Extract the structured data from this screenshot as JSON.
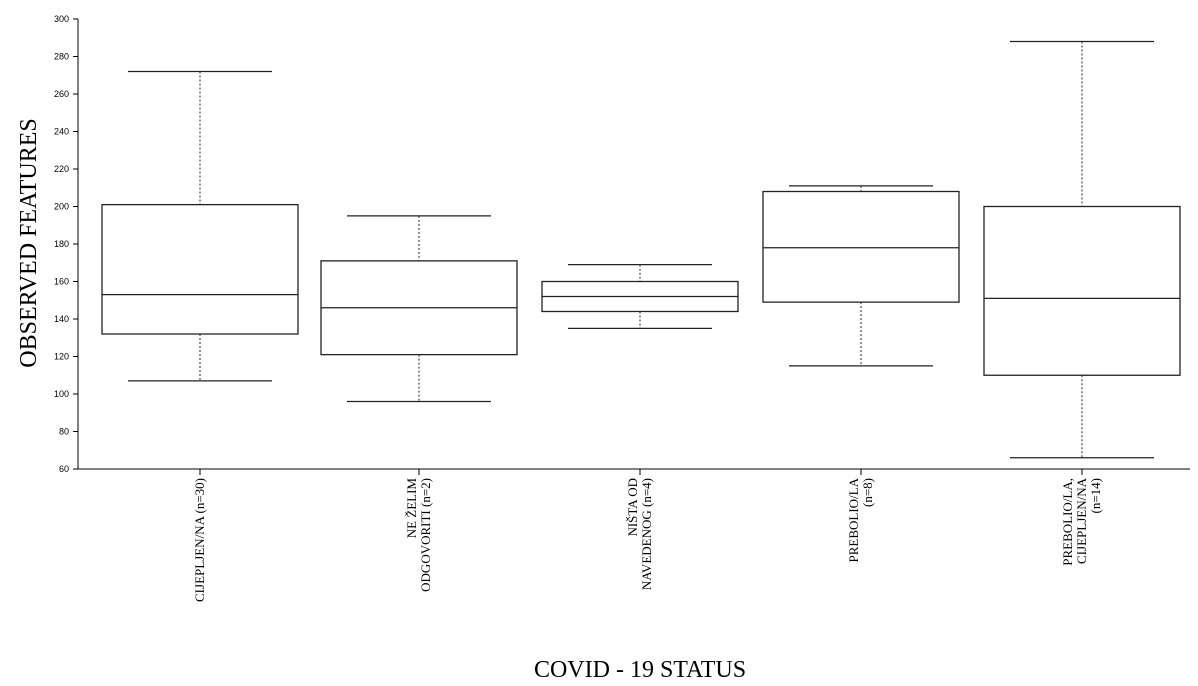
{
  "chart_data": {
    "type": "box",
    "xlabel": "COVID - 19 STATUS",
    "ylabel": "OBSERVED FEATURES",
    "ylim": [
      60,
      300
    ],
    "yticks": [
      60,
      80,
      100,
      120,
      140,
      160,
      180,
      200,
      220,
      240,
      260,
      280,
      300
    ],
    "grid": false,
    "categories": [
      [
        "CIJEPLJEN/NA (n=30)"
      ],
      [
        "NE ŽELIM",
        "ODGOVORITI (n=2)"
      ],
      [
        "NIŠTA OD",
        "NAVEDENOG (n=4)"
      ],
      [
        "PREBOLIO/LA",
        "(n=8)"
      ],
      [
        "PREBOLIO/LA,",
        "CIJEPLJEN/NA",
        "(n=14)"
      ]
    ],
    "boxes": [
      {
        "whisker_low": 107,
        "q1": 132,
        "median": 153,
        "q3": 201,
        "whisker_high": 272
      },
      {
        "whisker_low": 96,
        "q1": 121,
        "median": 146,
        "q3": 171,
        "whisker_high": 195
      },
      {
        "whisker_low": 135,
        "q1": 144,
        "median": 152,
        "q3": 160,
        "whisker_high": 169
      },
      {
        "whisker_low": 115,
        "q1": 149,
        "median": 178,
        "q3": 208,
        "whisker_high": 211
      },
      {
        "whisker_low": 66,
        "q1": 110,
        "median": 151,
        "q3": 200,
        "whisker_high": 288
      }
    ]
  }
}
